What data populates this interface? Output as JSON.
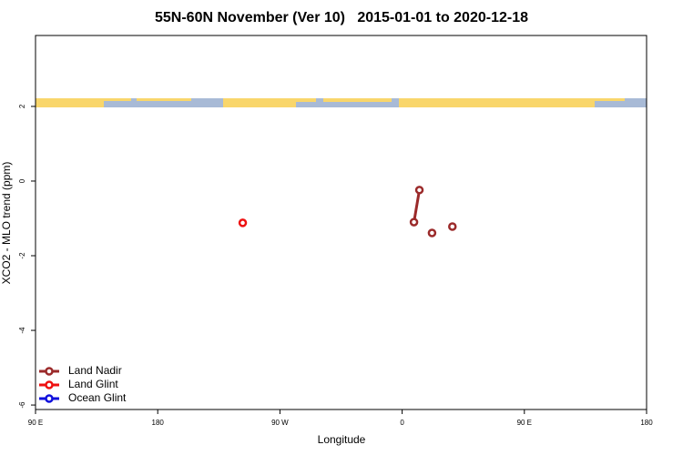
{
  "chart_data": {
    "type": "scatter",
    "title": "55N-60N November (Ver 10)   2015-01-01 to 2020-12-18",
    "x_label": "Longitude",
    "y_label": "XCO2 - MLO trend (ppm)",
    "xlim": [
      -270,
      180
    ],
    "xticks": [
      {
        "value": -270,
        "label": "90 E"
      },
      {
        "value": -180,
        "label": "180"
      },
      {
        "value": -90,
        "label": "90 W"
      },
      0,
      {
        "value": 90,
        "label": "90 E"
      },
      180
    ],
    "ylim": [
      -6.12,
      3.9
    ],
    "yticks": [
      2,
      0,
      -2,
      -4,
      -6
    ],
    "legend": "bottom-left",
    "series": [
      {
        "name": "Land Nadir",
        "color": "#9b2a2a",
        "x": [
          8.7,
          12.7,
          null,
          22,
          null,
          37
        ],
        "values": [
          -1.1,
          -0.24,
          null,
          -1.39,
          null,
          -1.22
        ]
      },
      {
        "name": "Land Glint",
        "color": "#ee1111",
        "x": [
          -117.4
        ],
        "values": [
          -1.12
        ]
      },
      {
        "name": "Ocean Glint",
        "color": "#1010dd",
        "x": [],
        "values": []
      }
    ]
  }
}
